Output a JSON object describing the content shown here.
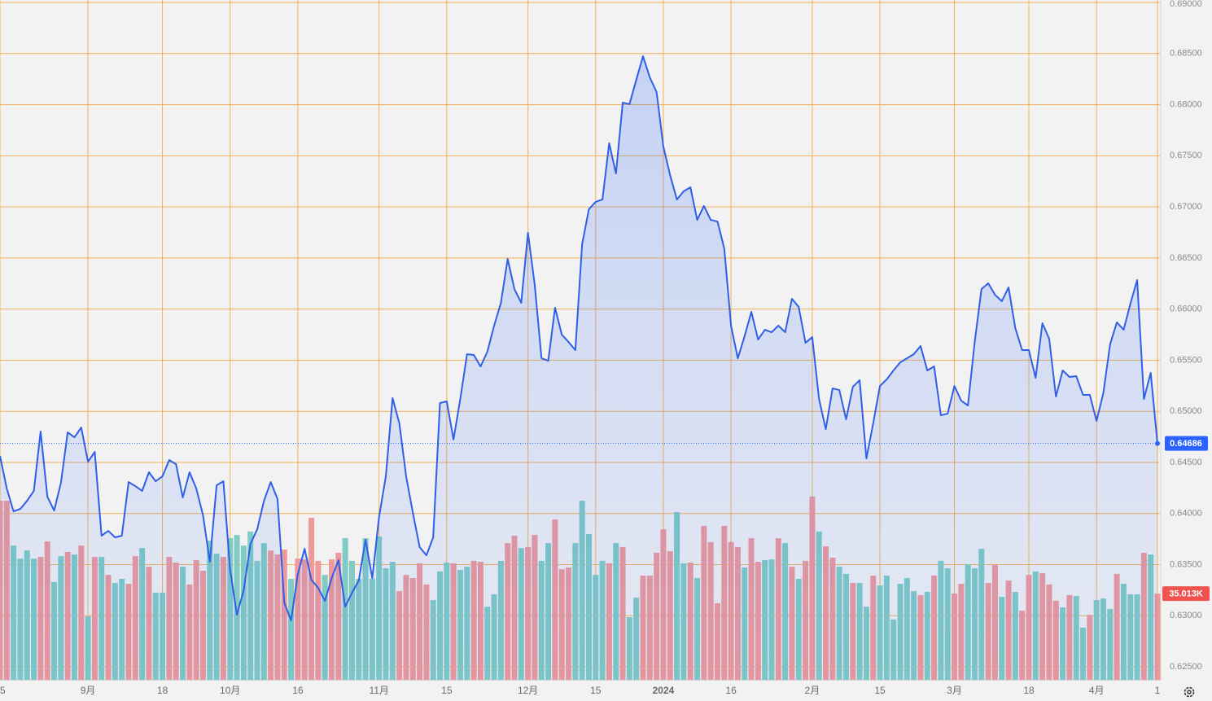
{
  "chart_data": {
    "type": "area",
    "categories": [
      "5",
      null,
      null,
      null,
      null,
      null,
      null,
      null,
      null,
      null,
      null,
      null,
      null,
      "9月",
      null,
      null,
      null,
      null,
      null,
      null,
      null,
      null,
      null,
      null,
      "18",
      null,
      null,
      null,
      null,
      null,
      null,
      null,
      null,
      null,
      "10月",
      null,
      null,
      null,
      null,
      null,
      null,
      null,
      null,
      null,
      "16",
      null,
      null,
      null,
      null,
      null,
      null,
      null,
      null,
      null,
      null,
      null,
      "11月",
      null,
      null,
      null,
      null,
      null,
      null,
      null,
      null,
      null,
      "15",
      null,
      null,
      null,
      null,
      null,
      null,
      null,
      null,
      null,
      null,
      null,
      "12月",
      null,
      null,
      null,
      null,
      null,
      null,
      null,
      null,
      null,
      "15",
      null,
      null,
      null,
      null,
      null,
      null,
      null,
      null,
      null,
      "2024",
      null,
      null,
      null,
      null,
      null,
      null,
      null,
      null,
      null,
      "16",
      null,
      null,
      null,
      null,
      null,
      null,
      null,
      null,
      null,
      null,
      null,
      "2月",
      null,
      null,
      null,
      null,
      null,
      null,
      null,
      null,
      null,
      "15",
      null,
      null,
      null,
      null,
      null,
      null,
      null,
      null,
      null,
      null,
      "3月",
      null,
      null,
      null,
      null,
      null,
      null,
      null,
      null,
      null,
      null,
      "18",
      null,
      null,
      null,
      null,
      null,
      null,
      null,
      null,
      null,
      "4月",
      null,
      null,
      null,
      null,
      null,
      null,
      null,
      null,
      "1"
    ],
    "series": [
      {
        "type": "area",
        "color": "#2f5fe8",
        "values": [
          0.64563,
          0.64245,
          0.64021,
          0.64045,
          0.64125,
          0.64221,
          0.64802,
          0.64165,
          0.64029,
          0.643,
          0.64794,
          0.64746,
          0.64842,
          0.64507,
          0.64603,
          0.63783,
          0.6383,
          0.63767,
          0.63783,
          0.64308,
          0.64268,
          0.64221,
          0.64404,
          0.64316,
          0.64364,
          0.64523,
          0.64484,
          0.64157,
          0.64404,
          0.64245,
          0.63982,
          0.63528,
          0.64276,
          0.64316,
          0.63448,
          0.6301,
          0.63249,
          0.63703,
          0.63846,
          0.64125,
          0.64308,
          0.64141,
          0.63129,
          0.62954,
          0.63408,
          0.63655,
          0.63352,
          0.63273,
          0.63145,
          0.63368,
          0.63544,
          0.63089,
          0.63225,
          0.63344,
          0.63743,
          0.63368,
          0.63966,
          0.64364,
          0.65129,
          0.64882,
          0.64364,
          0.64006,
          0.63671,
          0.63591,
          0.63767,
          0.65081,
          0.65097,
          0.64723,
          0.65121,
          0.65559,
          0.65551,
          0.65439,
          0.65583,
          0.65838,
          0.66061,
          0.66491,
          0.66196,
          0.66061,
          0.66746,
          0.66236,
          0.65519,
          0.65495,
          0.66013,
          0.6575,
          0.65678,
          0.65599,
          0.66634,
          0.66977,
          0.67049,
          0.67072,
          0.67622,
          0.67327,
          0.6802,
          0.68005,
          0.68243,
          0.68474,
          0.68267,
          0.68124,
          0.6759,
          0.67311,
          0.67072,
          0.67152,
          0.67192,
          0.66873,
          0.67009,
          0.66873,
          0.66857,
          0.66594,
          0.65838,
          0.65519,
          0.65734,
          0.65973,
          0.65702,
          0.65798,
          0.65774,
          0.65838,
          0.65774,
          0.66101,
          0.66021,
          0.6567,
          0.65726,
          0.65121,
          0.64826,
          0.65224,
          0.65208,
          0.64922,
          0.6524,
          0.65304,
          0.64539,
          0.64882,
          0.65248,
          0.65312,
          0.654,
          0.65479,
          0.65519,
          0.65559,
          0.65639,
          0.654,
          0.65439,
          0.64961,
          0.64977,
          0.65248,
          0.65105,
          0.65057,
          0.65678,
          0.66196,
          0.66252,
          0.6614,
          0.66077,
          0.66212,
          0.65814,
          0.65599,
          0.65599,
          0.65328,
          0.65862,
          0.6571,
          0.65145,
          0.654,
          0.65336,
          0.65344,
          0.65161,
          0.65161,
          0.64906,
          0.65177,
          0.65655,
          0.6587,
          0.65798,
          0.66053,
          0.66284,
          0.65121,
          0.65376,
          0.64686
        ]
      },
      {
        "type": "bar",
        "axis": "y2",
        "values": [
          72700,
          72700,
          54500,
          49200,
          52500,
          49200,
          49900,
          56200,
          39700,
          50200,
          51900,
          50900,
          54500,
          25800,
          49900,
          49900,
          42600,
          39300,
          41000,
          39000,
          50200,
          53500,
          45900,
          35400,
          35400,
          49900,
          47600,
          45900,
          38700,
          48600,
          44300,
          56500,
          51200,
          49900,
          57500,
          58800,
          54500,
          60200,
          48300,
          55500,
          52500,
          50900,
          52900,
          41000,
          49200,
          48900,
          65800,
          48300,
          42600,
          48900,
          51600,
          57500,
          48300,
          41000,
          57500,
          41000,
          58200,
          45300,
          47900,
          36000,
          42600,
          41300,
          47300,
          38700,
          32400,
          44000,
          47600,
          47300,
          44600,
          45900,
          48300,
          47900,
          29700,
          34700,
          48300,
          55500,
          58500,
          53500,
          53900,
          58800,
          48300,
          55500,
          65100,
          44900,
          45600,
          55500,
          72700,
          59200,
          42600,
          48300,
          47300,
          55500,
          53900,
          25400,
          33400,
          42300,
          42300,
          51600,
          61100,
          52200,
          68100,
          47300,
          47600,
          41300,
          62500,
          55900,
          31100,
          62500,
          55900,
          53900,
          45600,
          57500,
          47900,
          48600,
          48900,
          57500,
          55500,
          45900,
          41000,
          48300,
          74400,
          60200,
          54200,
          49600,
          45900,
          43000,
          39300,
          39300,
          29700,
          42300,
          38300,
          42300,
          24500,
          39000,
          41300,
          36000,
          34400,
          35700,
          42300,
          48300,
          45300,
          35000,
          39000,
          46900,
          45300,
          53200,
          39300,
          46600,
          33700,
          40300,
          35700,
          28100,
          42600,
          44000,
          43300,
          38700,
          32100,
          29400,
          34400,
          34000,
          21200,
          26400,
          32400,
          33000,
          28800,
          43000,
          39000,
          34700,
          34700,
          51600,
          50900,
          35013
        ],
        "value_labels": [
          null,
          null,
          null,
          null,
          null,
          null,
          null,
          null,
          null,
          null,
          null,
          null,
          null,
          null,
          null,
          null,
          null,
          null,
          null,
          null,
          null,
          null,
          null,
          null,
          null,
          null,
          null,
          null,
          null,
          null,
          null,
          null,
          null,
          null,
          null,
          null,
          null,
          null,
          null,
          null,
          null,
          null,
          null,
          null,
          null,
          null,
          null,
          null,
          null,
          null,
          null,
          null,
          null,
          null,
          null,
          null,
          null,
          null,
          null,
          null,
          null,
          null,
          null,
          null,
          null,
          null,
          null,
          null,
          null,
          null,
          null,
          null,
          null,
          null,
          null,
          null,
          null,
          null,
          null,
          null,
          null,
          null,
          null,
          null,
          null,
          null,
          null,
          null,
          null,
          null,
          null,
          null,
          null,
          null,
          null,
          null,
          null,
          null,
          null,
          null,
          null,
          null,
          null,
          null,
          null,
          null,
          null,
          null,
          null,
          null,
          null,
          null,
          null,
          null,
          null,
          null,
          null,
          null,
          null,
          null,
          null,
          null,
          null,
          null,
          null,
          null,
          null,
          null,
          null,
          null,
          null,
          null,
          null,
          null,
          null,
          null,
          null,
          null,
          null,
          null,
          null,
          null,
          null,
          null,
          null,
          null,
          null,
          null,
          null,
          null,
          null,
          null,
          null,
          null,
          null,
          null,
          null,
          null,
          null,
          null,
          null,
          null,
          null,
          null,
          null,
          null,
          null,
          null,
          null,
          null,
          null,
          "35.013K"
        ],
        "colors": [
          "#ef9a9a",
          "#ef9a9a",
          "#80cbc4",
          "#80cbc4",
          "#80cbc4",
          "#80cbc4",
          "#ef9a9a",
          "#ef9a9a",
          "#80cbc4",
          "#80cbc4",
          "#ef9a9a",
          "#80cbc4",
          "#ef9a9a",
          "#80cbc4",
          "#ef9a9a",
          "#80cbc4",
          "#ef9a9a",
          "#80cbc4",
          "#80cbc4",
          "#ef9a9a",
          "#ef9a9a",
          "#80cbc4",
          "#ef9a9a",
          "#80cbc4",
          "#80cbc4",
          "#ef9a9a",
          "#ef9a9a",
          "#80cbc4",
          "#ef9a9a",
          "#ef9a9a",
          "#ef9a9a",
          "#80cbc4",
          "#80cbc4",
          "#ef9a9a",
          "#80cbc4",
          "#80cbc4",
          "#80cbc4",
          "#80cbc4",
          "#80cbc4",
          "#80cbc4",
          "#ef9a9a",
          "#ef9a9a",
          "#ef9a9a",
          "#80cbc4",
          "#ef9a9a",
          "#ef9a9a",
          "#ef9a9a",
          "#ef9a9a",
          "#80cbc4",
          "#ef9a9a",
          "#ef9a9a",
          "#80cbc4",
          "#80cbc4",
          "#80cbc4",
          "#80cbc4",
          "#80cbc4",
          "#80cbc4",
          "#80cbc4",
          "#80cbc4",
          "#ef9a9a",
          "#ef9a9a",
          "#ef9a9a",
          "#ef9a9a",
          "#ef9a9a",
          "#80cbc4",
          "#80cbc4",
          "#80cbc4",
          "#ef9a9a",
          "#80cbc4",
          "#80cbc4",
          "#ef9a9a",
          "#ef9a9a",
          "#80cbc4",
          "#80cbc4",
          "#80cbc4",
          "#ef9a9a",
          "#ef9a9a",
          "#80cbc4",
          "#ef9a9a",
          "#ef9a9a",
          "#80cbc4",
          "#80cbc4",
          "#ef9a9a",
          "#ef9a9a",
          "#ef9a9a",
          "#80cbc4",
          "#80cbc4",
          "#80cbc4",
          "#80cbc4",
          "#80cbc4",
          "#ef9a9a",
          "#80cbc4",
          "#ef9a9a",
          "#80cbc4",
          "#80cbc4",
          "#ef9a9a",
          "#ef9a9a",
          "#ef9a9a",
          "#ef9a9a",
          "#ef9a9a",
          "#80cbc4",
          "#80cbc4",
          "#ef9a9a",
          "#80cbc4",
          "#ef9a9a",
          "#ef9a9a",
          "#ef9a9a",
          "#ef9a9a",
          "#ef9a9a",
          "#ef9a9a",
          "#80cbc4",
          "#ef9a9a",
          "#ef9a9a",
          "#80cbc4",
          "#80cbc4",
          "#ef9a9a",
          "#80cbc4",
          "#ef9a9a",
          "#80cbc4",
          "#ef9a9a",
          "#ef9a9a",
          "#80cbc4",
          "#ef9a9a",
          "#ef9a9a",
          "#80cbc4",
          "#80cbc4",
          "#ef9a9a",
          "#80cbc4",
          "#80cbc4",
          "#ef9a9a",
          "#80cbc4",
          "#80cbc4",
          "#80cbc4",
          "#80cbc4",
          "#80cbc4",
          "#80cbc4",
          "#ef9a9a",
          "#80cbc4",
          "#ef9a9a",
          "#80cbc4",
          "#80cbc4",
          "#ef9a9a",
          "#ef9a9a",
          "#80cbc4",
          "#80cbc4",
          "#80cbc4",
          "#ef9a9a",
          "#ef9a9a",
          "#80cbc4",
          "#ef9a9a",
          "#80cbc4",
          "#ef9a9a",
          "#ef9a9a",
          "#80cbc4",
          "#ef9a9a",
          "#ef9a9a",
          "#ef9a9a",
          "#80cbc4",
          "#ef9a9a",
          "#80cbc4",
          "#80cbc4",
          "#ef9a9a",
          "#80cbc4",
          "#80cbc4",
          "#80cbc4",
          "#ef9a9a",
          "#80cbc4",
          "#80cbc4",
          "#80cbc4",
          "#ef9a9a",
          "#80cbc4",
          "#ef9a9a"
        ]
      }
    ],
    "ylim": [
      0.62373,
      0.69024
    ],
    "yticks": [
      {
        "value": 0.625,
        "label": "0.62500"
      },
      {
        "value": 0.63,
        "label": "0.63000"
      },
      {
        "value": 0.635,
        "label": "0.63500"
      },
      {
        "value": 0.64,
        "label": "0.64000"
      },
      {
        "value": 0.645,
        "label": "0.64500"
      },
      {
        "value": 0.65,
        "label": "0.65000"
      },
      {
        "value": 0.655,
        "label": "0.65500"
      },
      {
        "value": 0.66,
        "label": "0.66000"
      },
      {
        "value": 0.665,
        "label": "0.66500"
      },
      {
        "value": 0.67,
        "label": "0.67000"
      },
      {
        "value": 0.675,
        "label": "0.67500"
      },
      {
        "value": 0.68,
        "label": "0.68000"
      },
      {
        "value": 0.685,
        "label": "0.68500"
      },
      {
        "value": 0.69,
        "label": "0.69000"
      }
    ],
    "y2lim": [
      0,
      276000
    ],
    "grid": true,
    "grid_color": "#f3a73c",
    "last_price_color": "#2962ff",
    "last_volume_color": "#ef5350"
  }
}
